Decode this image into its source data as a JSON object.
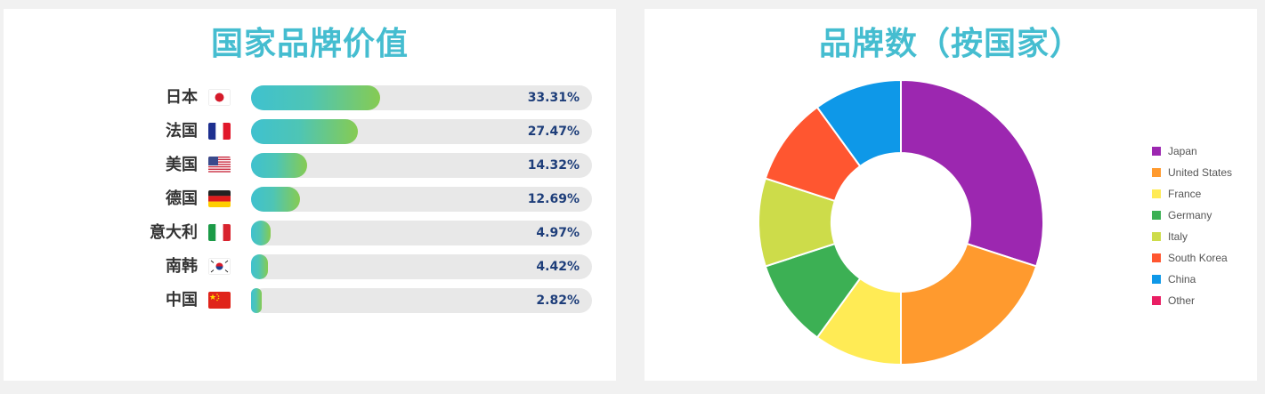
{
  "left_panel": {
    "title": "国家品牌价值"
  },
  "right_panel": {
    "title": "品牌数（按国家）"
  },
  "chart_data": [
    {
      "type": "bar",
      "orientation": "horizontal",
      "title": "国家品牌价值",
      "categories": [
        "日本",
        "法国",
        "美国",
        "德国",
        "意大利",
        "南韩",
        "中国"
      ],
      "values": [
        33.31,
        27.47,
        14.32,
        12.69,
        4.97,
        4.42,
        2.82
      ],
      "value_labels": [
        "33.31%",
        "27.47%",
        "14.32%",
        "12.69%",
        "4.97%",
        "4.42%",
        "2.82%"
      ],
      "flags": [
        "japan-flag-icon",
        "france-flag-icon",
        "usa-flag-icon",
        "germany-flag-icon",
        "italy-flag-icon",
        "south-korea-flag-icon",
        "china-flag-icon"
      ],
      "xlim": [
        0,
        100
      ],
      "bar_gradient": [
        "#3fc1cf",
        "#86cb52"
      ],
      "track_color": "#e8e8e8"
    },
    {
      "type": "pie",
      "variant": "donut",
      "title": "品牌数（按国家）",
      "labels": [
        "Japan",
        "United States",
        "France",
        "Germany",
        "Italy",
        "South Korea",
        "China",
        "Other"
      ],
      "values": [
        30,
        20,
        10,
        10,
        10,
        10,
        10,
        0
      ],
      "colors": [
        "#9c27b0",
        "#ff9a2e",
        "#ffeb55",
        "#3cb054",
        "#cddc4a",
        "#ff5630",
        "#0e98e8",
        "#e91e63"
      ],
      "legend_position": "right"
    }
  ]
}
